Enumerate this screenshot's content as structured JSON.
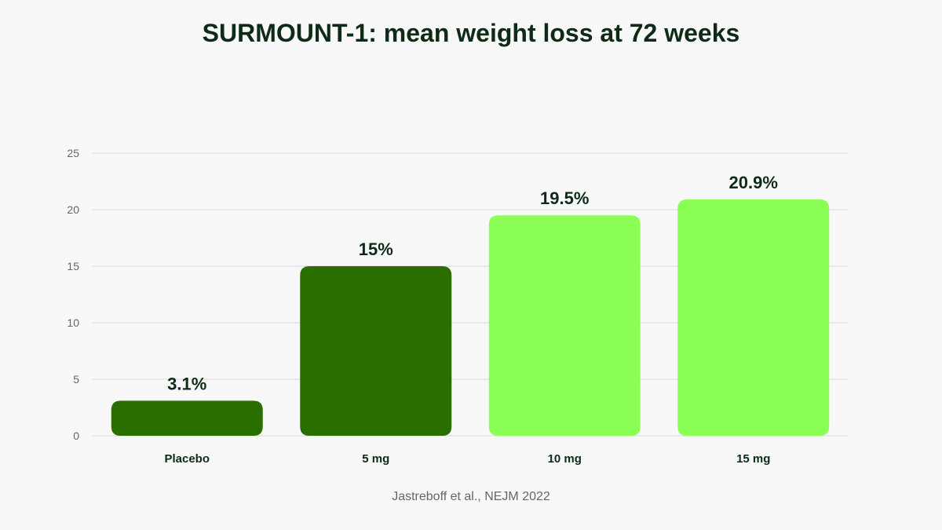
{
  "colors": {
    "background": "#f8f8f8",
    "dark_green": "#2a6e00",
    "light_green": "#8cff55",
    "gridline": "#d9d9d9",
    "label_text": "#0d2b16",
    "tick_text": "#666666"
  },
  "chart_data": {
    "type": "bar",
    "title": "SURMOUNT-1: mean weight loss at 72 weeks",
    "xlabel": "",
    "ylabel": "",
    "categories": [
      "Placebo",
      "5 mg",
      "10 mg",
      "15 mg"
    ],
    "values": [
      3.1,
      15,
      19.5,
      20.9
    ],
    "data_labels": [
      "3.1%",
      "15%",
      "19.5%",
      "20.9%"
    ],
    "bar_colors": [
      "#2a6e00",
      "#2a6e00",
      "#8cff55",
      "#8cff55"
    ],
    "ylim": [
      0,
      25
    ],
    "yticks": [
      0,
      5,
      10,
      15,
      20,
      25
    ],
    "grid": true,
    "legend": "none"
  },
  "source": "Jastreboff et al., NEJM 2022"
}
